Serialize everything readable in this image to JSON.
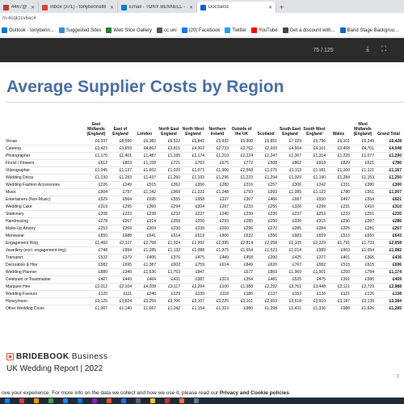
{
  "browser": {
    "tabs": [
      {
        "label": "4467@brook",
        "color": "#c0392b"
      },
      {
        "label": "Inbox (371) - tonybennell85@gm",
        "color": "#d44638"
      },
      {
        "label": "Email - TONY BENNELL - Outlo",
        "color": "#0078d4"
      },
      {
        "label": "DocSend",
        "color": "#0a66c2",
        "active": true
      }
    ],
    "new_tab_label": "+",
    "url": "m-4cqkzcv6ac4",
    "bookmarks": [
      {
        "label": "Outlook - tonybenn...",
        "color": "#0078d4"
      },
      {
        "label": "Suggested Sites",
        "color": "#3b8ad9"
      },
      {
        "label": "Web Slice Gallery",
        "color": "#2e7d32"
      },
      {
        "label": "cc uni",
        "color": "#555555"
      },
      {
        "label": "(20) Facebook",
        "color": "#1877f2"
      },
      {
        "label": "Twitter",
        "color": "#1da1f2"
      },
      {
        "label": "YouTube",
        "color": "#ff0000"
      },
      {
        "label": "Get a discount with...",
        "color": "#444444"
      },
      {
        "label": "Band Stage Backgrou...",
        "color": "#1565c0"
      }
    ]
  },
  "viewer": {
    "page_indicator": "75 / 125"
  },
  "document": {
    "title": "Average Supplier Costs by Region",
    "columns": [
      "",
      "East Midlands (England)",
      "East of England",
      "London",
      "North East England",
      "North West England",
      "Northern Ireland",
      "Outside of the UK",
      "Scotland",
      "South East England",
      "South West England",
      "Wales",
      "West Midlands (England)",
      "Grand Total"
    ],
    "rows": [
      [
        "Venue",
        "£6,337",
        "£8,596",
        "£6,382",
        "£6,522",
        "£5,841",
        "£5,932",
        "£5,908",
        "£5,851",
        "£7,029",
        "£6,796",
        "£6,101",
        "£6,249",
        "£6,428"
      ],
      [
        "Catering",
        "£3,423",
        "£3,659",
        "£4,862",
        "£3,815",
        "£4,002",
        "£2,733",
        "£3,762",
        "£2,933",
        "£4,664",
        "£4,101",
        "£3,458",
        "£4,701",
        "£4,048"
      ],
      [
        "Photographer",
        "£1,176",
        "£1,401",
        "£1,487",
        "£1,195",
        "£1,174",
        "£1,210",
        "£2,224",
        "£1,247",
        "£1,367",
        "£1,314",
        "£1,225",
        "£1,077",
        "£1,290"
      ],
      [
        "Florist / Flowers",
        "£612",
        "£803",
        "£1,158",
        "£721",
        "£763",
        "£675",
        "£772",
        "£608",
        "£862",
        "£918",
        "£829",
        "£621",
        "£786"
      ],
      [
        "Videographer",
        "£1,045",
        "£1,137",
        "£1,602",
        "£1,020",
        "£1,071",
        "£1,006",
        "£2,568",
        "£1,075",
        "£1,113",
        "£1,181",
        "£1,160",
        "£1,121",
        "£1,167"
      ],
      [
        "Wedding Dress",
        "£1,130",
        "£1,283",
        "£1,437",
        "£1,260",
        "£1,193",
        "£1,296",
        "£1,223",
        "£1,294",
        "£1,329",
        "£1,190",
        "£1,284",
        "£1,153",
        "£1,250"
      ],
      [
        "Wedding Fashion Accessories",
        "£226",
        "£249",
        "£515",
        "£262",
        "£356",
        "£280",
        "£316",
        "£257",
        "£306",
        "£242",
        "£331",
        "£380",
        "£300"
      ],
      [
        "Music",
        "£904",
        "£797",
        "£1,142",
        "£968",
        "£1,022",
        "£1,248",
        "£793",
        "£993",
        "£1,085",
        "£1,122",
        "£780",
        "£951",
        "£1,007"
      ],
      [
        "Entertainers (Non-Music)",
        "£529",
        "£564",
        "£695",
        "£555",
        "£958",
        "£337",
        "£307",
        "£466",
        "£687",
        "£550",
        "£497",
        "£554",
        "£621"
      ],
      [
        "Wedding Cake",
        "£319",
        "£295",
        "£360",
        "£294",
        "£304",
        "£297",
        "£233",
        "£256",
        "£326",
        "£299",
        "£231",
        "£410",
        "£310"
      ],
      [
        "Stationery",
        "£208",
        "£223",
        "£238",
        "£232",
        "£227",
        "£240",
        "£230",
        "£236",
        "£237",
        "£253",
        "£233",
        "£251",
        "£235"
      ],
      [
        "Hairdressing",
        "£278",
        "£267",
        "£314",
        "£258",
        "£250",
        "£293",
        "£285",
        "£250",
        "£336",
        "£315",
        "£236",
        "£287",
        "£286"
      ],
      [
        "Make-Up Artistry",
        "£253",
        "£269",
        "£309",
        "£230",
        "£239",
        "£260",
        "£296",
        "£270",
        "£285",
        "£284",
        "£225",
        "£281",
        "£267"
      ],
      [
        "Menswear",
        "£650",
        "£688",
        "£641",
        "£614",
        "£619",
        "£906",
        "£632",
        "£556",
        "£683",
        "£659",
        "£513",
        "£650",
        "£643"
      ],
      [
        "Engagement Ring",
        "£1,460",
        "£2,117",
        "£2,758",
        "£1,924",
        "£1,992",
        "£2,335",
        "£2,814",
        "£2,058",
        "£2,105",
        "£2,329",
        "£1,791",
        "£1,733",
        "£2,058"
      ],
      [
        "Jewellery (excl. engagement ring)",
        "£748",
        "£994",
        "£1,285",
        "£1,132",
        "£1,088",
        "£1,375",
        "£1,654",
        "£1,523",
        "£1,014",
        "£989",
        "£903",
        "£1,054",
        "£1,082"
      ],
      [
        "Transport",
        "£532",
        "£379",
        "£405",
        "£376",
        "£475",
        "£449",
        "£458",
        "£390",
        "£425",
        "£377",
        "£401",
        "£365",
        "£436"
      ],
      [
        "Decoration & Hire",
        "£582",
        "£695",
        "£1,387",
        "£602",
        "£759",
        "£614",
        "£849",
        "£620",
        "£767",
        "£582",
        "£515",
        "£615",
        "£696"
      ],
      [
        "Wedding Planner",
        "£880",
        "£340",
        "£1,636",
        "£1,753",
        "£847",
        "",
        "£677",
        "£869",
        "£1,960",
        "£1,501",
        "£250",
        "£784",
        "£1,174"
      ],
      [
        "Celebrant or Toastmaster",
        "£427",
        "£443",
        "£464",
        "£431",
        "£387",
        "£319",
        "£354",
        "£481",
        "£525",
        "£475",
        "£391",
        "£580",
        "£459"
      ],
      [
        "Marquee Hire",
        "£2,012",
        "£2,104",
        "£4,208",
        "£3,117",
        "£2,264",
        "£100",
        "£1,988",
        "£2,292",
        "£3,761",
        "£3,448",
        "£2,121",
        "£2,729",
        "£2,988"
      ],
      [
        "Wedding Favours",
        "£120",
        "£111",
        "£240",
        "£129",
        "£130",
        "£118",
        "£186",
        "£137",
        "£153",
        "£136",
        "£121",
        "£126",
        "£138"
      ],
      [
        "Honeymoon",
        "£3,125",
        "£3,824",
        "£3,259",
        "£3,706",
        "£3,107",
        "£3,225",
        "£3,101",
        "£2,653",
        "£3,618",
        "£3,910",
        "£3,187",
        "£3,135",
        "£3,384"
      ],
      [
        "Other Wedding Costs",
        "£1,007",
        "£1,140",
        "£1,667",
        "£1,242",
        "£1,154",
        "£1,313",
        "£980",
        "£1,298",
        "£1,431",
        "£1,336",
        "£988",
        "£1,626",
        "£1,285"
      ]
    ],
    "brand": {
      "name": "BRIDEBOOK",
      "suffix": "Business",
      "logo_color": "#e94e3d"
    },
    "report_title": "UK Wedding Report | 2022",
    "page_number": "7"
  },
  "cookie_banner": {
    "text": "ove your experience. For more info on the data we collect and how we use it, please read our ",
    "link": "Privacy and Cookie policies",
    "end": "."
  },
  "taskbar": {
    "colors": [
      "#0a84ff",
      "#e53935",
      "#ff9800",
      "#43a047",
      "#1e88e5",
      "#0078d4",
      "#8e24aa",
      "#f4511e",
      "#1a73e8",
      "#5f6368",
      "#fbc02d",
      "#d32f2f",
      "#ff7043",
      "#607d8b"
    ]
  }
}
